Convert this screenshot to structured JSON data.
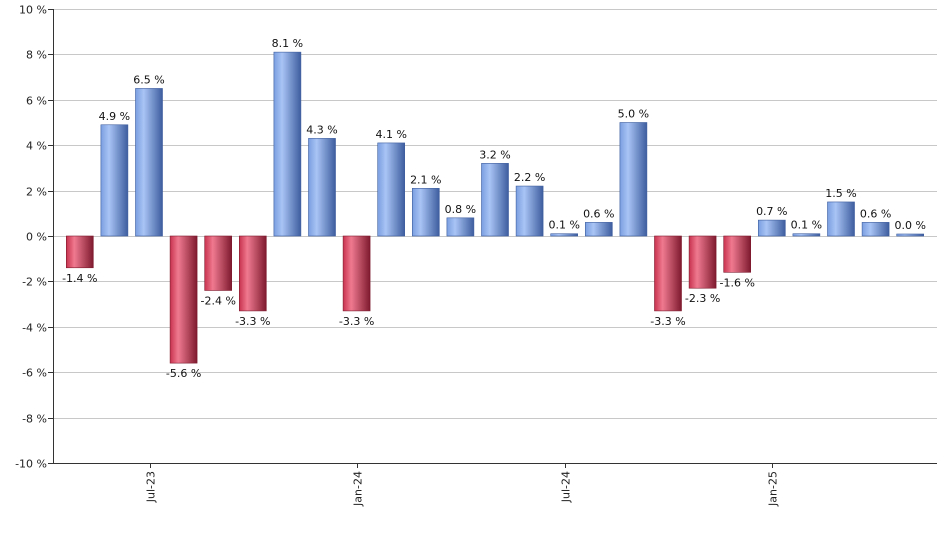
{
  "chart_data": {
    "type": "bar",
    "title": "",
    "xlabel": "",
    "ylabel": "",
    "ylim": [
      -10,
      10
    ],
    "ytick_values": [
      -10,
      -8,
      -6,
      -4,
      -2,
      0,
      2,
      4,
      6,
      8,
      10
    ],
    "ytick_labels": [
      "-10 %",
      "-8 %",
      "-6 %",
      "-4 %",
      "-2 %",
      "0 %",
      "2 %",
      "4 %",
      "6 %",
      "8 %",
      "10 %"
    ],
    "categories": [
      "2023-05",
      "2023-06",
      "2023-07",
      "2023-08",
      "2023-09",
      "2023-10",
      "2023-11",
      "2023-12",
      "2024-01",
      "2024-02",
      "2024-03",
      "2024-04",
      "2024-05",
      "2024-06",
      "2024-07",
      "2024-08",
      "2024-09",
      "2024-10",
      "2024-11",
      "2024-12",
      "2025-01",
      "2025-02",
      "2025-03",
      "2025-04",
      "2025-05"
    ],
    "values": [
      -1.4,
      4.9,
      6.5,
      -5.6,
      -2.4,
      -3.3,
      8.1,
      4.3,
      -3.3,
      4.1,
      2.1,
      0.8,
      3.2,
      2.2,
      0.1,
      0.6,
      5.0,
      -3.3,
      -2.3,
      -1.6,
      0.7,
      0.1,
      1.5,
      0.6,
      0.0
    ],
    "value_labels": [
      "-1.4 %",
      "4.9 %",
      "6.5 %",
      "-5.6 %",
      "-2.4 %",
      "-3.3 %",
      "8.1 %",
      "4.3 %",
      "-3.3 %",
      "4.1 %",
      "2.1 %",
      "0.8 %",
      "3.2 %",
      "2.2 %",
      "0.1 %",
      "0.6 %",
      "5.0 %",
      "-3.3 %",
      "-2.3 %",
      "-1.6 %",
      "0.7 %",
      "0.1 %",
      "1.5 %",
      "0.6 %",
      "0.0 %"
    ],
    "xtick_labels": [
      {
        "category": "2023-07",
        "label": "Jul-23"
      },
      {
        "category": "2024-01",
        "label": "Jan-24"
      },
      {
        "category": "2024-07",
        "label": "Jul-24"
      },
      {
        "category": "2025-01",
        "label": "Jan-25"
      }
    ],
    "grid": true,
    "legend": "none",
    "colors": {
      "positive": "#7a9ee0",
      "positive_light": "#a9c4f5",
      "positive_dark": "#3d5d9e",
      "negative": "#c8324e",
      "negative_light": "#ef7a90",
      "negative_dark": "#7e1a2e",
      "grid": "#c8c8c8",
      "axis": "#333333"
    }
  }
}
